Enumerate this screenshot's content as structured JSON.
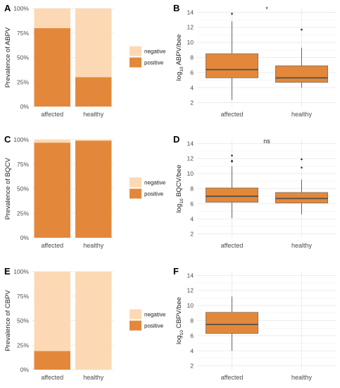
{
  "colors": {
    "positive": "#e3883a",
    "negative": "#fcd9b4",
    "median": "#505050",
    "whisker": "#555555",
    "outlier": "#333333",
    "grid": "#e6e6e6"
  },
  "chart_data": [
    {
      "panel": "A",
      "type": "bar",
      "stacked": true,
      "categories": [
        "affected",
        "healthy"
      ],
      "series": [
        {
          "name": "positive",
          "values": [
            80,
            30
          ]
        },
        {
          "name": "negative",
          "values": [
            20,
            70
          ]
        }
      ],
      "ylabel": "Prevalence of ABPV",
      "ylim": [
        0,
        100
      ],
      "yticks": [
        "0%",
        "25%",
        "50%",
        "75%",
        "100%"
      ],
      "legend": {
        "position": "right",
        "entries": [
          "negative",
          "positive"
        ]
      }
    },
    {
      "panel": "B",
      "type": "box",
      "categories": [
        "affected",
        "healthy"
      ],
      "boxes": [
        {
          "low": 2.4,
          "q1": 5.3,
          "median": 6.4,
          "q3": 8.5,
          "high": 12.8,
          "outliers": [
            13.8
          ]
        },
        {
          "low": 4.0,
          "q1": 4.7,
          "median": 5.3,
          "q3": 6.9,
          "high": 9.3,
          "outliers": [
            11.7
          ]
        }
      ],
      "ylabel_main": "log",
      "ylabel_sub": "10",
      "ylabel_rest": " ABPV/bee",
      "ylim": [
        1.5,
        14.5
      ],
      "yticks": [
        2,
        4,
        6,
        8,
        10,
        12,
        14
      ],
      "annotation": "*"
    },
    {
      "panel": "C",
      "type": "bar",
      "stacked": true,
      "categories": [
        "affected",
        "healthy"
      ],
      "series": [
        {
          "name": "positive",
          "values": [
            97,
            99
          ]
        },
        {
          "name": "negative",
          "values": [
            3,
            1
          ]
        }
      ],
      "ylabel": "Prevalence of BQCV",
      "ylim": [
        0,
        100
      ],
      "yticks": [
        "0%",
        "25%",
        "50%",
        "75%",
        "100%"
      ],
      "legend": {
        "position": "right",
        "entries": [
          "negative",
          "positive"
        ]
      }
    },
    {
      "panel": "D",
      "type": "box",
      "categories": [
        "affected",
        "healthy"
      ],
      "boxes": [
        {
          "low": 4.1,
          "q1": 6.2,
          "median": 7.0,
          "q3": 8.1,
          "high": 11.0,
          "outliers": [
            11.6,
            11.7,
            12.4
          ]
        },
        {
          "low": 4.6,
          "q1": 6.1,
          "median": 6.7,
          "q3": 7.5,
          "high": 9.2,
          "outliers": [
            10.8,
            11.9
          ]
        }
      ],
      "ylabel_main": "log",
      "ylabel_sub": "10",
      "ylabel_rest": " BQCV/bee",
      "ylim": [
        1.5,
        14.5
      ],
      "yticks": [
        2,
        4,
        6,
        8,
        10,
        12,
        14
      ],
      "annotation": "ns"
    },
    {
      "panel": "E",
      "type": "bar",
      "stacked": true,
      "categories": [
        "affected",
        "healthy"
      ],
      "series": [
        {
          "name": "positive",
          "values": [
            19,
            0
          ]
        },
        {
          "name": "negative",
          "values": [
            81,
            100
          ]
        }
      ],
      "ylabel": "Prevalence of CBPV",
      "ylim": [
        0,
        100
      ],
      "yticks": [
        "0%",
        "25%",
        "50%",
        "75%",
        "100%"
      ],
      "legend": {
        "position": "right",
        "entries": [
          "negative",
          "positive"
        ]
      }
    },
    {
      "panel": "F",
      "type": "box",
      "categories": [
        "affected",
        "healthy"
      ],
      "boxes": [
        {
          "low": 4.0,
          "q1": 6.3,
          "median": 7.5,
          "q3": 9.1,
          "high": 11.2,
          "outliers": []
        },
        null
      ],
      "ylabel_main": "log",
      "ylabel_sub": "10",
      "ylabel_rest": " CBPV/bee",
      "ylim": [
        1.5,
        14.5
      ],
      "yticks": [
        2,
        4,
        6,
        8,
        10,
        12,
        14
      ],
      "annotation": ""
    }
  ]
}
